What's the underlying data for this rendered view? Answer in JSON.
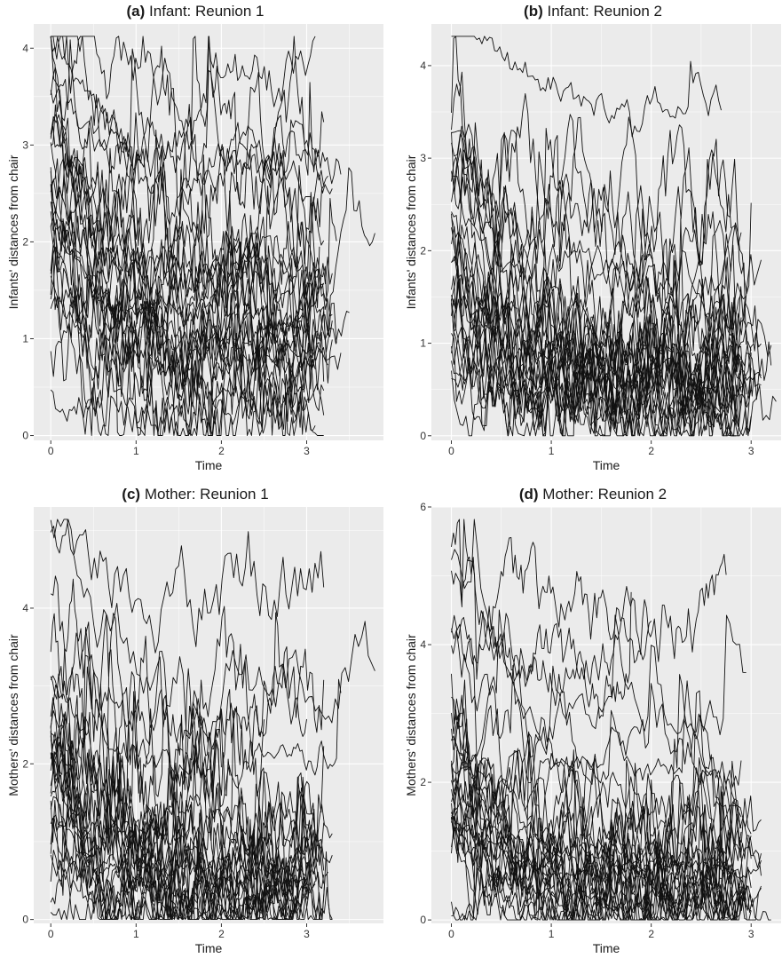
{
  "chart_data": [
    {
      "type": "line",
      "panel_letter": "(a)",
      "title": "Infant: Reunion 1",
      "xlabel": "Time",
      "ylabel": "Infants' distances from chair",
      "xlim": [
        -0.2,
        3.9
      ],
      "ylim": [
        -0.05,
        4.25
      ],
      "xticks": [
        0,
        1,
        2,
        3
      ],
      "yticks": [
        0,
        1,
        2,
        3,
        4
      ],
      "grid": true,
      "background": "#ebebeb",
      "line_color": "#111111",
      "series_count": 30,
      "typical_levels": [
        0.15,
        0.3,
        0.5,
        0.6,
        0.7,
        0.8,
        0.9,
        1.0,
        1.1,
        1.2,
        1.3,
        1.4,
        1.5,
        1.6,
        1.8,
        1.9,
        2.1,
        2.3,
        2.6,
        3.0,
        3.3,
        3.6,
        0.4,
        0.95,
        1.25,
        0.2,
        2.8,
        1.7,
        0.75,
        1.05
      ],
      "series_end_times": [
        3.1,
        3.2,
        3.3,
        3.0,
        3.35,
        3.4,
        3.2,
        3.1,
        3.25,
        3.3,
        3.0,
        3.15,
        3.2,
        3.35,
        3.3,
        3.8,
        3.1,
        3.2,
        3.3,
        3.25,
        3.2,
        3.1,
        3.2,
        3.0,
        3.3,
        3.2,
        3.4,
        3.2,
        3.15,
        3.5
      ]
    },
    {
      "type": "line",
      "panel_letter": "(b)",
      "title": "Infant: Reunion 2",
      "xlabel": "Time",
      "ylabel": "Infants' distances from chair",
      "xlim": [
        -0.2,
        3.3
      ],
      "ylim": [
        -0.05,
        4.45
      ],
      "xticks": [
        0,
        1,
        2,
        3
      ],
      "yticks": [
        0,
        1,
        2,
        3,
        4
      ],
      "grid": true,
      "background": "#ebebeb",
      "line_color": "#111111",
      "series_count": 30,
      "typical_levels": [
        0.1,
        0.2,
        0.3,
        0.4,
        0.5,
        0.6,
        0.7,
        0.8,
        0.9,
        1.0,
        1.1,
        1.2,
        1.3,
        1.5,
        1.8,
        2.2,
        2.4,
        2.6,
        3.6,
        0.25,
        0.45,
        0.65,
        0.85,
        1.05,
        0.35,
        0.55,
        0.75,
        0.95,
        1.25,
        0.15
      ],
      "series_end_times": [
        2.9,
        3.0,
        3.1,
        2.8,
        2.9,
        3.0,
        2.95,
        3.1,
        2.85,
        2.9,
        3.0,
        3.1,
        3.2,
        2.95,
        2.9,
        3.0,
        2.8,
        2.95,
        2.7,
        3.0,
        2.9,
        3.1,
        3.2,
        2.9,
        3.0,
        2.85,
        2.9,
        3.0,
        3.1,
        3.25
      ]
    },
    {
      "type": "line",
      "panel_letter": "(c)",
      "title": "Mother: Reunion 1",
      "xlabel": "Time",
      "ylabel": "Mothers' distances from chair",
      "xlim": [
        -0.2,
        3.9
      ],
      "ylim": [
        -0.05,
        5.3
      ],
      "xticks": [
        0,
        1,
        2,
        3
      ],
      "yticks": [
        0,
        2,
        4
      ],
      "grid": true,
      "background": "#ebebeb",
      "line_color": "#111111",
      "series_count": 30,
      "typical_levels": [
        0.05,
        0.1,
        0.15,
        0.2,
        0.25,
        0.3,
        0.35,
        0.4,
        0.5,
        0.6,
        0.7,
        0.8,
        0.9,
        1.1,
        1.3,
        1.6,
        1.8,
        2.1,
        2.5,
        2.8,
        3.3,
        4.2,
        0.45,
        0.55,
        0.65,
        0.75,
        0.85,
        0.95,
        1.2,
        2.0
      ],
      "series_end_times": [
        3.1,
        3.2,
        3.0,
        3.3,
        3.2,
        3.1,
        3.25,
        3.0,
        3.3,
        3.2,
        3.1,
        3.0,
        3.2,
        3.1,
        3.3,
        2.1,
        2.0,
        2.5,
        3.0,
        3.2,
        3.8,
        3.2,
        3.1,
        3.0,
        3.2,
        3.1,
        3.3,
        3.0,
        3.2,
        3.4
      ]
    },
    {
      "type": "line",
      "panel_letter": "(d)",
      "title": "Mother: Reunion 2",
      "xlabel": "Time",
      "ylabel": "Mothers' distances from chair",
      "xlim": [
        -0.2,
        3.3
      ],
      "ylim": [
        -0.05,
        6.0
      ],
      "xticks": [
        0,
        1,
        2,
        3
      ],
      "yticks": [
        0,
        2,
        4,
        6
      ],
      "grid": true,
      "background": "#ebebeb",
      "line_color": "#111111",
      "series_count": 30,
      "typical_levels": [
        0.0,
        0.05,
        0.1,
        0.15,
        0.2,
        0.25,
        0.3,
        0.35,
        0.4,
        0.5,
        0.6,
        0.7,
        0.8,
        0.9,
        1.0,
        1.2,
        1.5,
        1.8,
        2.1,
        2.5,
        3.5,
        3.9,
        4.4,
        0.45,
        0.55,
        0.65,
        0.75,
        0.85,
        1.1,
        2.9
      ],
      "series_end_times": [
        3.2,
        3.0,
        2.9,
        3.1,
        2.95,
        3.0,
        2.9,
        3.1,
        2.8,
        2.9,
        3.0,
        3.1,
        2.95,
        2.9,
        3.0,
        3.1,
        3.0,
        2.9,
        2.7,
        2.9,
        1.8,
        2.0,
        2.75,
        2.9,
        3.0,
        3.1,
        2.9,
        3.0,
        3.1,
        2.95
      ]
    }
  ]
}
